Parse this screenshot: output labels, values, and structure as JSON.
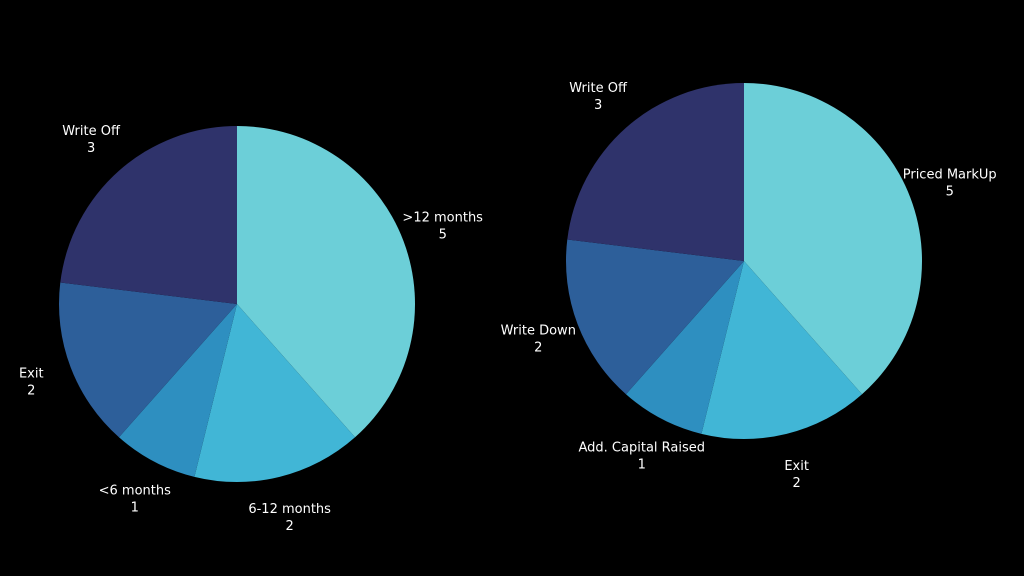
{
  "chart_data": [
    {
      "type": "pie",
      "categories": [
        ">12 months",
        "6-12 months",
        "<6 months",
        "Exit",
        "Write Off"
      ],
      "values": [
        5,
        2,
        1,
        2,
        3
      ],
      "colors": [
        "#6ccfd8",
        "#41b6d6",
        "#2e8fc0",
        "#2d5f9a",
        "#2f336b"
      ]
    },
    {
      "type": "pie",
      "categories": [
        "Priced MarkUp",
        "Exit",
        "Add. Capital Raised",
        "Write Down",
        "Write Off"
      ],
      "values": [
        5,
        2,
        1,
        2,
        3
      ],
      "colors": [
        "#6ccfd8",
        "#41b6d6",
        "#2e8fc0",
        "#2d5f9a",
        "#2f336b"
      ]
    }
  ]
}
